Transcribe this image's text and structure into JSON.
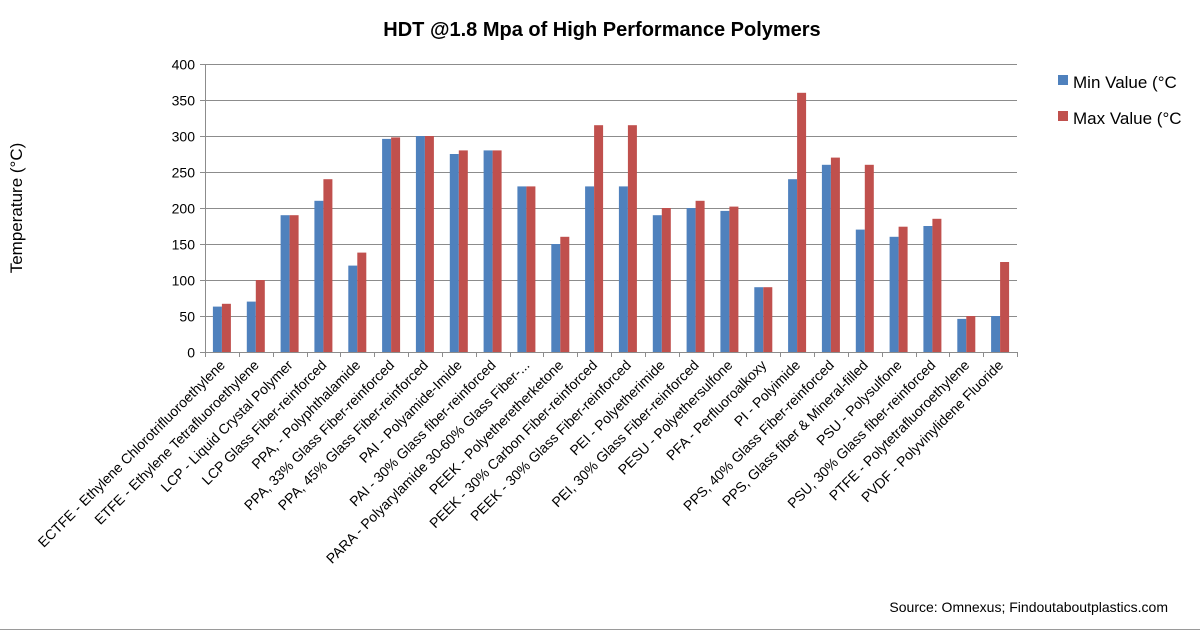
{
  "chart_data": {
    "type": "bar",
    "title": "HDT @1.8 Mpa of High Performance Polymers",
    "xlabel": "",
    "ylabel": "Temperature (°C)",
    "ylim": [
      0,
      400
    ],
    "yticks": [
      0,
      50,
      100,
      150,
      200,
      250,
      300,
      350,
      400
    ],
    "grid": true,
    "legend_position": "right",
    "categories": [
      "ECTFE - Ethylene Chlorotrifluoroethylene",
      "ETFE - Ethylene Tetrafluoroethylene",
      "LCP - Liquid Crystal Polymer",
      "LCP Glass Fiber-reinforced",
      "PPA, - Polyphthalamide",
      "PPA, 33% Glass Fiber-reinforced",
      "PPA, 45% Glass Fiber-reinforced",
      "PAI - Polyamide-Imide",
      "PAI - 30% Glass fiber-reinforced",
      "PARA - Polyarylamide 30-60% Glass Fiber-...",
      "PEEK - Polyetheretherketone",
      "PEEK - 30% Carbon Fiber-reinforced",
      "PEEK - 30% Glass Fiber-reinforced",
      "PEI - Polyetherimide",
      "PEI, 30% Glass Fiber-reinforced",
      "PESU - Polyethersulfone",
      "PFA - Perfluoroalkoxy",
      "PI - Polyimide",
      "PPS, 40% Glass Fiber-reinforced",
      "PPS, Glass fiber & Mineral-filled",
      "PSU - Polysulfone",
      "PSU, 30% Glass fiber-reinforced",
      "PTFE - Polytetrafluoroethylene",
      "PVDF - Polyvinylidene Fluoride"
    ],
    "series": [
      {
        "name": "Min Value (°C)",
        "color": "#4F81BD",
        "values": [
          63,
          70,
          190,
          210,
          120,
          296,
          300,
          275,
          280,
          230,
          150,
          230,
          230,
          190,
          200,
          196,
          90,
          240,
          260,
          170,
          160,
          175,
          46,
          50
        ]
      },
      {
        "name": "Max Value (°C)",
        "color": "#C0504D",
        "values": [
          67,
          100,
          190,
          240,
          138,
          298,
          300,
          280,
          280,
          230,
          160,
          315,
          315,
          200,
          210,
          202,
          90,
          360,
          270,
          260,
          174,
          185,
          50,
          125
        ]
      }
    ],
    "legend_entries": [
      "Min Value (°C",
      "Max Value (°C"
    ],
    "annotation": "Source: Omnexus; Findoutaboutplastics.com"
  }
}
